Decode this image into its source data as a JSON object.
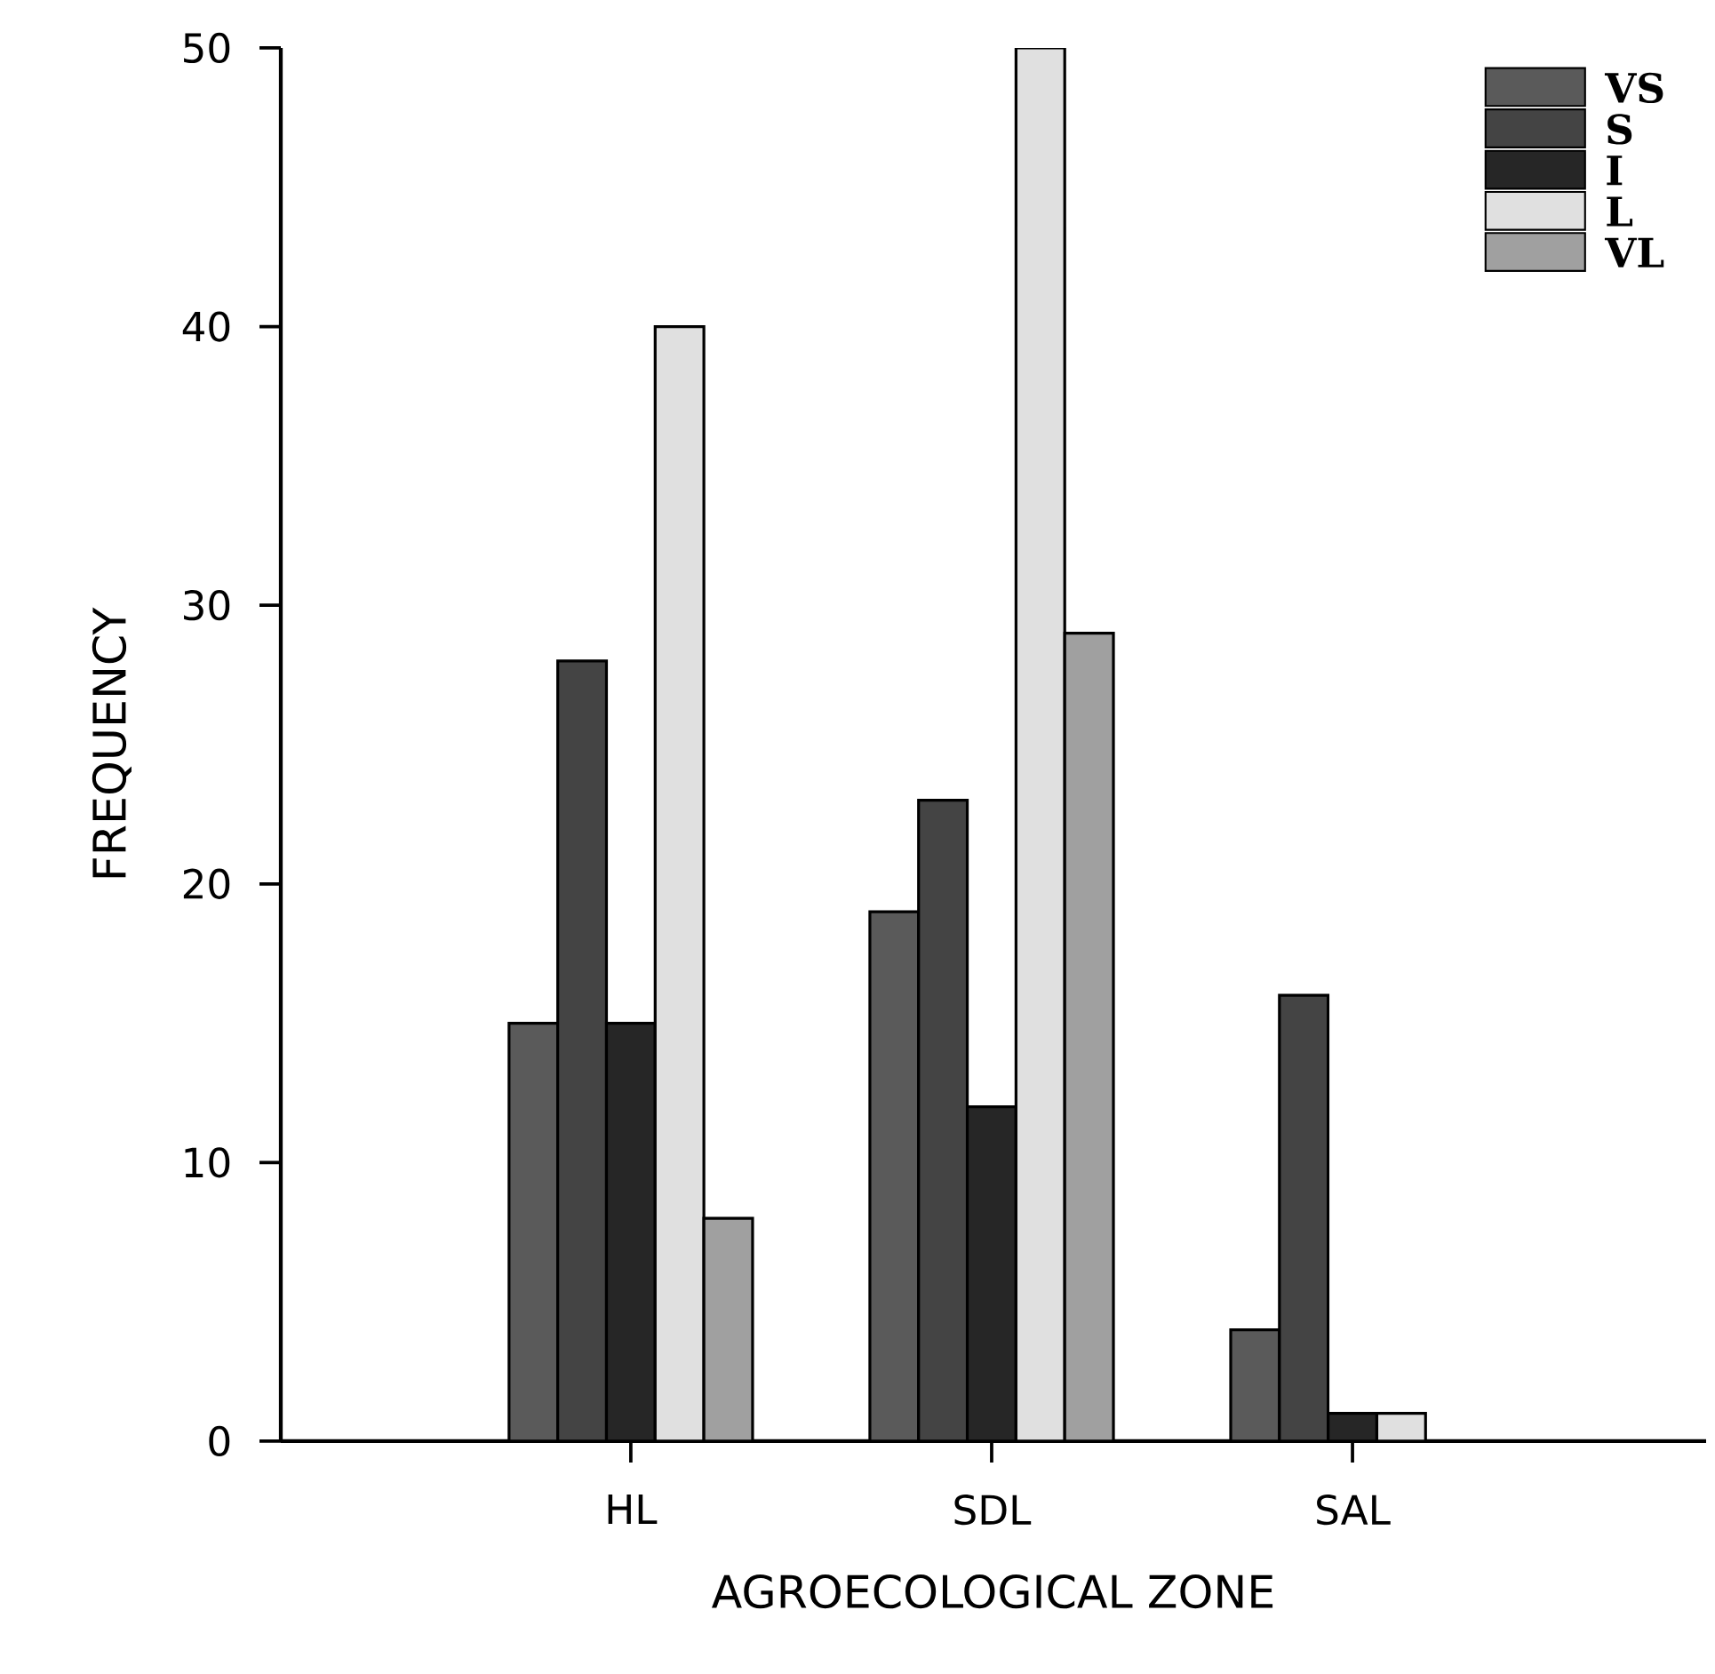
{
  "chart_data": {
    "type": "bar",
    "xlabel": "AGROECOLOGICAL ZONE",
    "ylabel": "FREQUENCY",
    "categories": [
      "HL",
      "SDL",
      "SAL"
    ],
    "series": [
      {
        "name": "VS",
        "color": "#5a5a5a",
        "values": [
          15,
          19,
          4
        ]
      },
      {
        "name": "S",
        "color": "#444444",
        "values": [
          28,
          23,
          16
        ]
      },
      {
        "name": "I",
        "color": "#262626",
        "values": [
          15,
          12,
          1
        ]
      },
      {
        "name": "L",
        "color": "#e0e0e0",
        "values": [
          40,
          50,
          1
        ]
      },
      {
        "name": "VL",
        "color": "#a0a0a0",
        "values": [
          8,
          29,
          0
        ]
      }
    ],
    "ylim": [
      0,
      50
    ],
    "yticks": [
      0,
      10,
      20,
      30,
      40,
      50
    ],
    "grid": false,
    "legend": "top right"
  }
}
